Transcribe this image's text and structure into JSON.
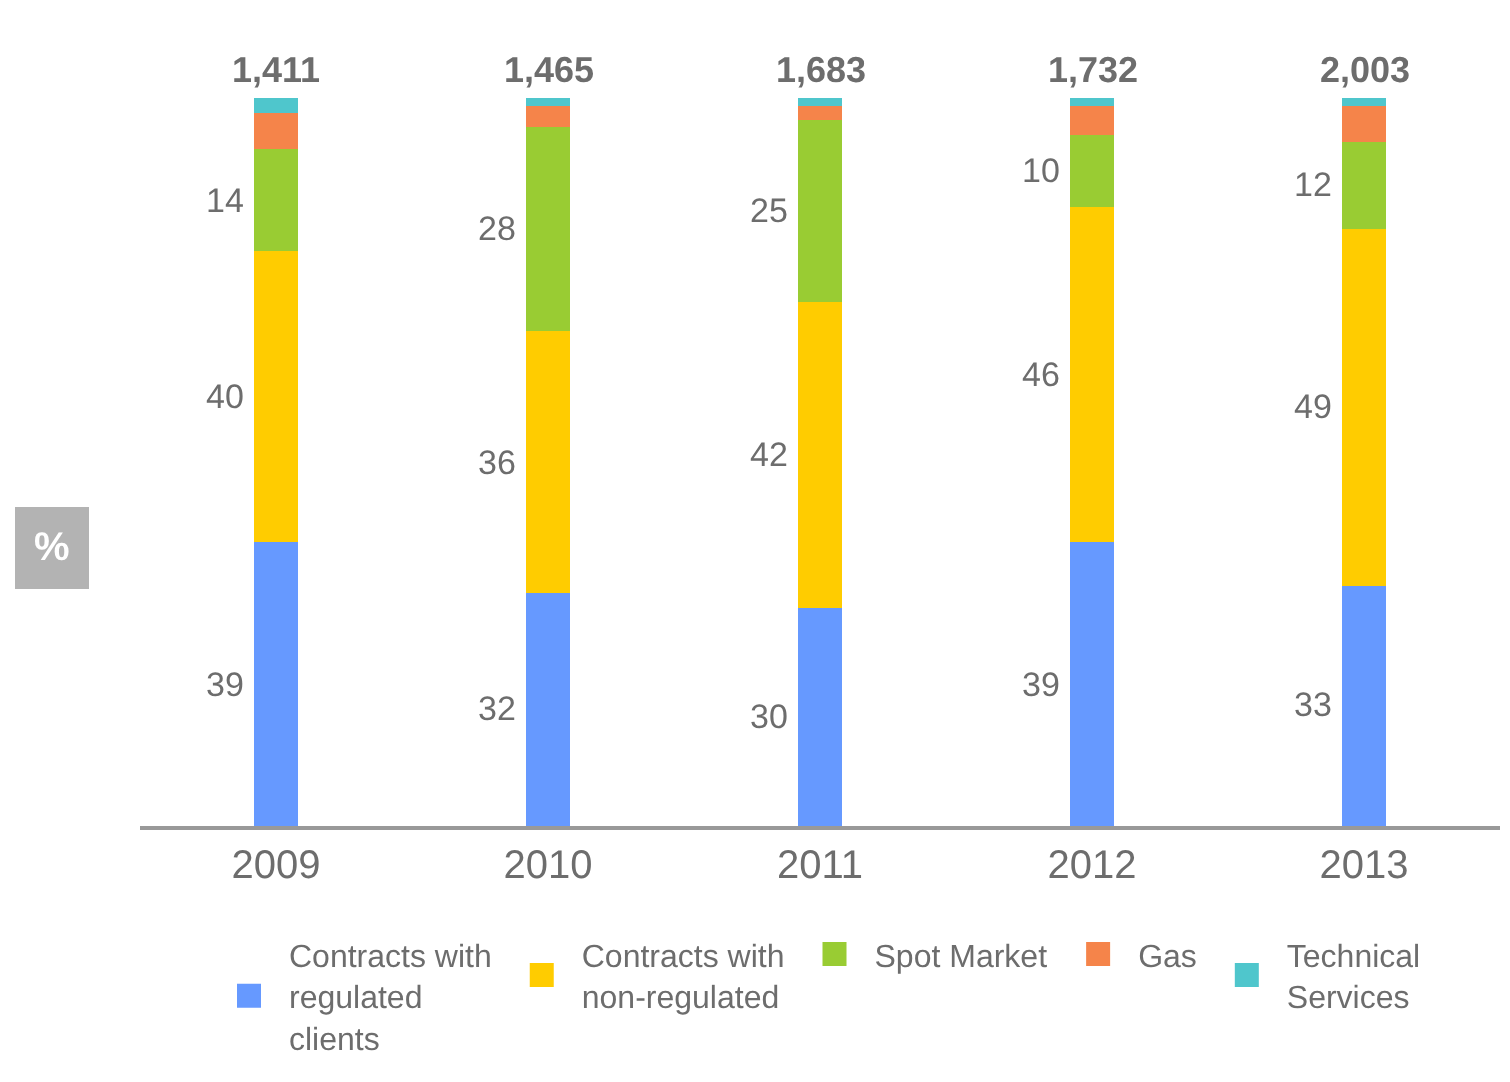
{
  "chart_data": {
    "type": "bar",
    "stacked": true,
    "ylabel": "%",
    "categories": [
      "2009",
      "2010",
      "2011",
      "2012",
      "2013"
    ],
    "series": [
      {
        "name": "Contracts with regulated clients",
        "color": "#6699ff",
        "values": [
          39,
          32,
          30,
          39,
          33
        ],
        "value_labels": [
          "39",
          "32",
          "30",
          "39",
          "33"
        ]
      },
      {
        "name": "Contracts with non-regulated",
        "color": "#ffcc00",
        "values": [
          40,
          36,
          42,
          46,
          49
        ],
        "value_labels": [
          "40",
          "36",
          "42",
          "46",
          "49"
        ]
      },
      {
        "name": "Spot Market",
        "color": "#99cc33",
        "values": [
          14,
          28,
          25,
          10,
          12
        ],
        "value_labels": [
          "14",
          "28",
          "25",
          "10",
          "12"
        ]
      },
      {
        "name": "Gas",
        "color": "#f5844a",
        "values": [
          5,
          3,
          2,
          4,
          5
        ]
      },
      {
        "name": "Technical Services",
        "color": "#4fc6cc",
        "values": [
          2,
          1,
          1,
          1,
          1
        ]
      }
    ],
    "annotations": [
      {
        "text": "1,411",
        "x": "2009",
        "y": 100
      },
      {
        "text": "1,465",
        "x": "2010",
        "y": 100
      },
      {
        "text": "1,683",
        "x": "2011",
        "y": 100
      },
      {
        "text": "1,732",
        "x": "2012",
        "y": 100
      },
      {
        "text": "2,003",
        "x": "2013",
        "y": 100
      }
    ],
    "legend": "bottom"
  }
}
